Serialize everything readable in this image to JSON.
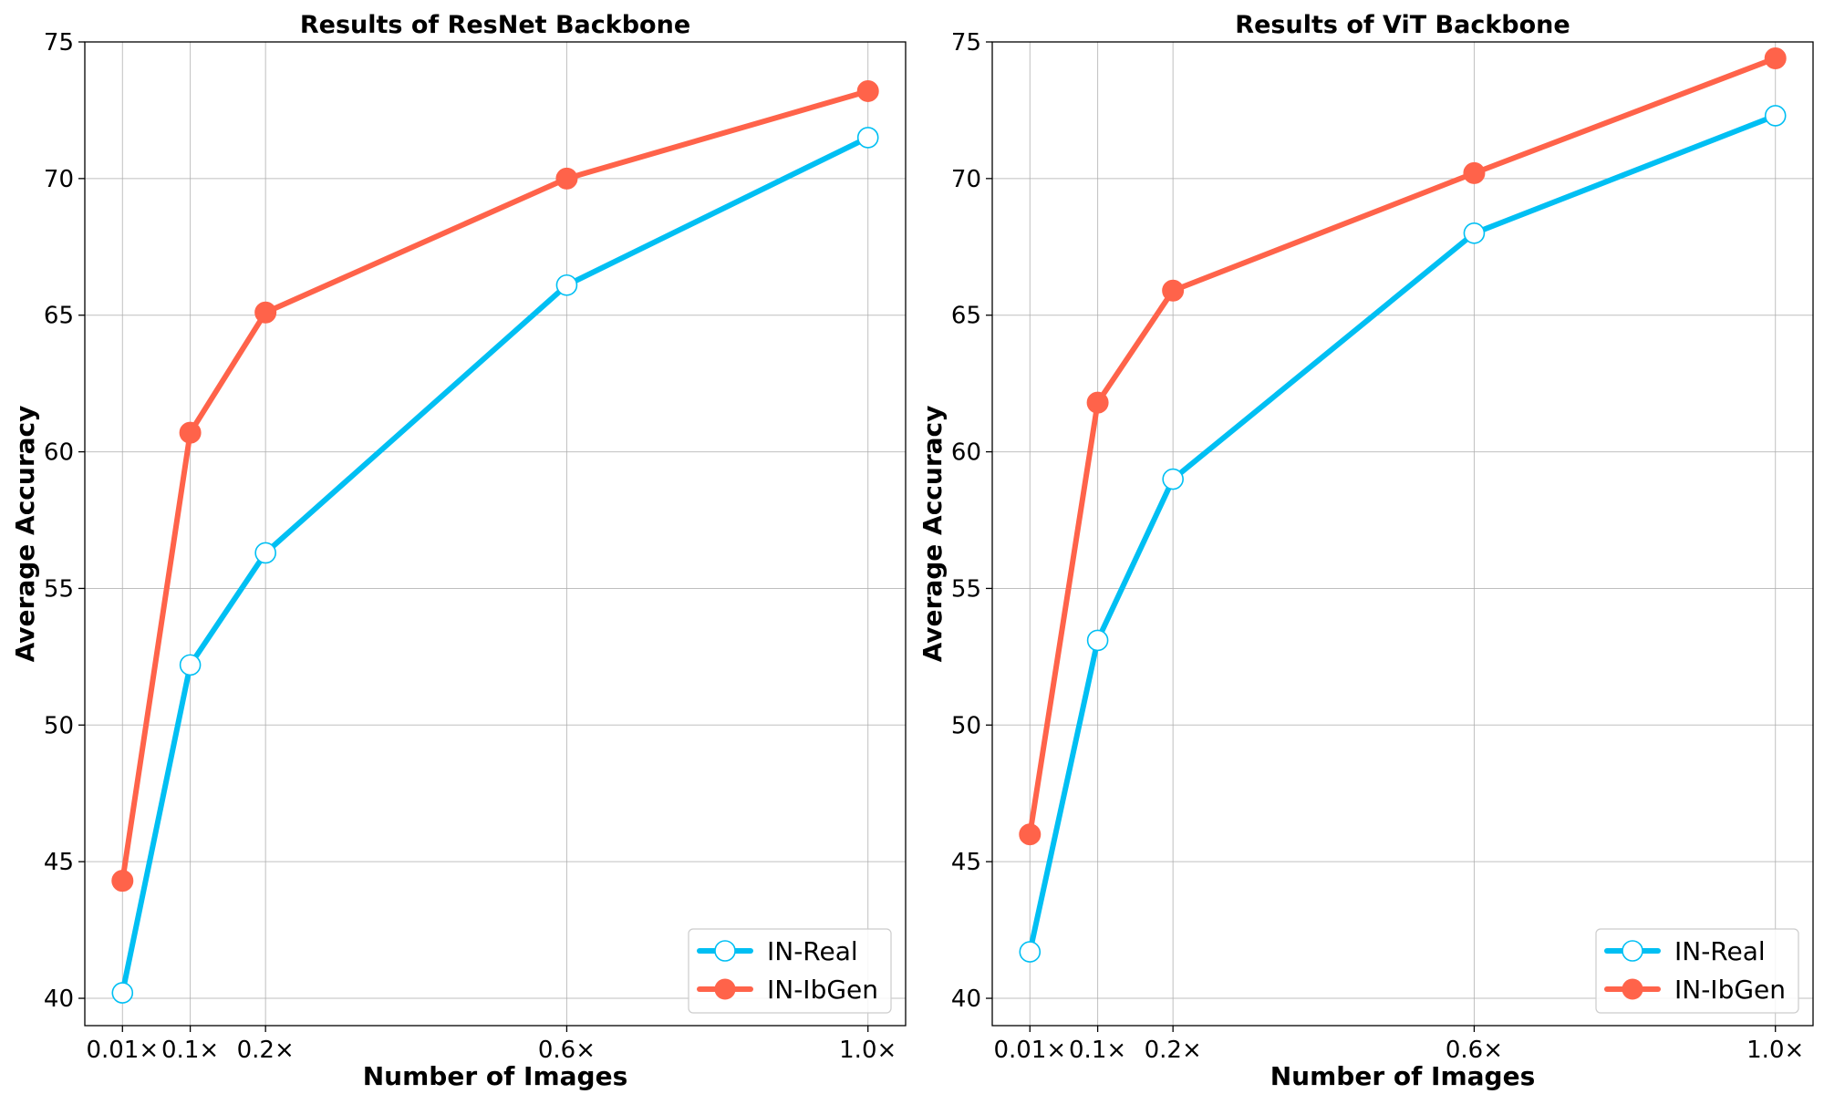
{
  "chart_data": [
    {
      "type": "line",
      "title": "Results of ResNet Backbone",
      "xlabel": "Number of Images",
      "ylabel": "Average Accuracy",
      "x": [
        0.01,
        0.1,
        0.2,
        0.6,
        1.0
      ],
      "x_tick_labels": [
        "0.01×",
        "0.1×",
        "0.2×",
        "0.6×",
        "1.0×"
      ],
      "xlim": [
        -0.04,
        1.05
      ],
      "ylim": [
        39,
        75
      ],
      "y_ticks": [
        40,
        45,
        50,
        55,
        60,
        65,
        70,
        75
      ],
      "grid": true,
      "legend_position": "lower-right",
      "series": [
        {
          "name": "IN-Real",
          "color": "#00bff3",
          "marker": "hollow-circle",
          "values": [
            40.2,
            52.2,
            56.3,
            66.1,
            71.5
          ]
        },
        {
          "name": "IN-IbGen",
          "color": "#ff634a",
          "marker": "filled-circle",
          "values": [
            44.3,
            60.7,
            65.1,
            70.0,
            73.2
          ]
        }
      ]
    },
    {
      "type": "line",
      "title": "Results of ViT Backbone",
      "xlabel": "Number of Images",
      "ylabel": "Average Accuracy",
      "x": [
        0.01,
        0.1,
        0.2,
        0.6,
        1.0
      ],
      "x_tick_labels": [
        "0.01×",
        "0.1×",
        "0.2×",
        "0.6×",
        "1.0×"
      ],
      "xlim": [
        -0.04,
        1.05
      ],
      "ylim": [
        39,
        75
      ],
      "y_ticks": [
        40,
        45,
        50,
        55,
        60,
        65,
        70,
        75
      ],
      "grid": true,
      "legend_position": "lower-right",
      "series": [
        {
          "name": "IN-Real",
          "color": "#00bff3",
          "marker": "hollow-circle",
          "values": [
            41.7,
            53.1,
            59.0,
            68.0,
            72.3
          ]
        },
        {
          "name": "IN-IbGen",
          "color": "#ff634a",
          "marker": "filled-circle",
          "values": [
            46.0,
            61.8,
            65.9,
            70.2,
            74.4
          ]
        }
      ]
    }
  ]
}
